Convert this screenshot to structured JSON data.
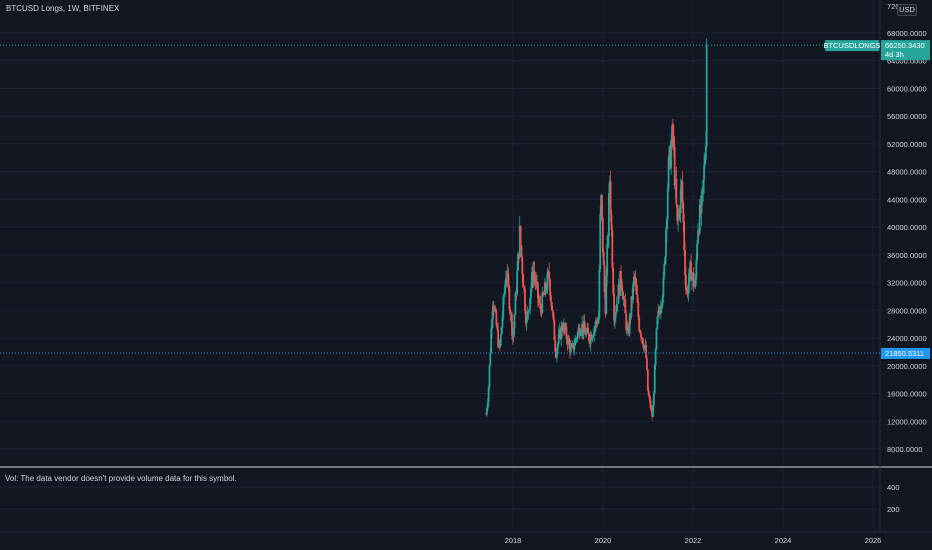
{
  "header": {
    "title": "BTCUSD Longs, 1W, BITFINEX"
  },
  "currency_button": "USD",
  "volume_pane": {
    "note": "Vol: The data vendor doesn't provide volume data for this symbol.",
    "ticks": [
      "400",
      "200"
    ]
  },
  "price_axis": {
    "top_partial_label": "720",
    "labels": [
      "68000.0000",
      "64000.0000",
      "60000.0000",
      "56000.0000",
      "52000.0000",
      "48000.0000",
      "44000.0000",
      "40000.0000",
      "36000.0000",
      "32000.0000",
      "28000.0000",
      "24000.0000",
      "20000.0000",
      "16000.0000",
      "12000.0000",
      "8000.0000"
    ]
  },
  "time_axis": {
    "labels": [
      "2018",
      "2020",
      "2022",
      "2024",
      "2026"
    ]
  },
  "price_tags": {
    "symbol": "BTCUSDLONGS",
    "last_value": "66250.3430",
    "countdown": "4d 3h",
    "hline_value": "21850.5311"
  },
  "colors": {
    "background": "#131722",
    "grid": "#1f2330",
    "up": "#26a69a",
    "down": "#ef5350",
    "last_price": "#26a69a",
    "hline": "#2196f3",
    "hline_tag": "#2196f3"
  },
  "chart_data": {
    "type": "candlestick",
    "title": "BTCUSD Longs, 1W, BITFINEX",
    "y_unit": "USD",
    "ylim": [
      5000,
      72000
    ],
    "xlim": [
      2013.7,
      2026.5
    ],
    "last_value": 66250.343,
    "horizontal_line": 21850.5311,
    "grid": true,
    "anchors": [
      [
        2017.4,
        13000
      ],
      [
        2017.45,
        16000
      ],
      [
        2017.55,
        30000
      ],
      [
        2017.7,
        22000
      ],
      [
        2017.85,
        34000
      ],
      [
        2018.0,
        24000
      ],
      [
        2018.15,
        39000
      ],
      [
        2018.3,
        26000
      ],
      [
        2018.45,
        34000
      ],
      [
        2018.6,
        28000
      ],
      [
        2018.8,
        33000
      ],
      [
        2018.95,
        22000
      ],
      [
        2019.1,
        26000
      ],
      [
        2019.3,
        22000
      ],
      [
        2019.5,
        26000
      ],
      [
        2019.7,
        24000
      ],
      [
        2019.9,
        27000
      ],
      [
        2019.95,
        45000
      ],
      [
        2020.05,
        28000
      ],
      [
        2020.15,
        47000
      ],
      [
        2020.25,
        27000
      ],
      [
        2020.4,
        33000
      ],
      [
        2020.55,
        24000
      ],
      [
        2020.7,
        33000
      ],
      [
        2020.8,
        26000
      ],
      [
        2020.95,
        22000
      ],
      [
        2021.0,
        16000
      ],
      [
        2021.1,
        12500
      ],
      [
        2021.2,
        26000
      ],
      [
        2021.35,
        32000
      ],
      [
        2021.45,
        48000
      ],
      [
        2021.55,
        53500
      ],
      [
        2021.65,
        40000
      ],
      [
        2021.75,
        46000
      ],
      [
        2021.85,
        30000
      ],
      [
        2021.95,
        34000
      ],
      [
        2022.05,
        31000
      ],
      [
        2022.1,
        40000
      ],
      [
        2022.2,
        43000
      ],
      [
        2022.28,
        52000
      ],
      [
        2022.32,
        66250
      ]
    ]
  }
}
